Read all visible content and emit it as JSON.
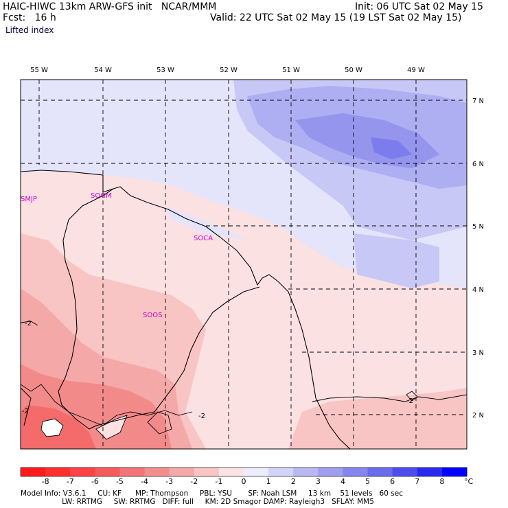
{
  "header": {
    "title": "HAIC-HIWC 13km ARW-GFS init   NCAR/MMM",
    "fcst": "Fcst:   16 h",
    "field": "Lifted index",
    "init": "Init: 06 UTC Sat 02 May 15",
    "valid": "Valid: 22 UTC Sat 02 May 15 (19 LST Sat 02 May 15)"
  },
  "map": {
    "lon_labels": [
      "55 W",
      "54 W",
      "53 W",
      "52 W",
      "51 W",
      "50 W",
      "49 W"
    ],
    "lat_labels": [
      "7 N",
      "6 N",
      "5 N",
      "4 N",
      "3 N",
      "2 N"
    ],
    "stations": [
      "SMJP",
      "SOGM",
      "SOCA",
      "SOOS"
    ],
    "contour_labels": [
      "-2",
      "-2",
      "-2",
      "-2"
    ],
    "colors": {
      "neg": [
        "#ff2020",
        "#ff4545",
        "#f56b6b",
        "#f38a8a",
        "#f5a8a8",
        "#f8c4c4",
        "#fbe1e1"
      ],
      "pos": [
        "#e4e4fb",
        "#c8c8f6",
        "#aeaef2",
        "#9595ee",
        "#7c7ced",
        "#5a5aee",
        "#2a2aef",
        "#0000ff"
      ],
      "coast": "#000000",
      "station_text": "#cc00cc"
    }
  },
  "colorbar": {
    "labels": [
      "-8",
      "-7",
      "-6",
      "-5",
      "-4",
      "-3",
      "-2",
      "-1",
      "0",
      "1",
      "2",
      "3",
      "4",
      "5",
      "6",
      "7",
      "8"
    ],
    "unit": "°C",
    "colors": [
      "#ff1a1a",
      "#ff2e2e",
      "#fd4343",
      "#f65a5a",
      "#f37575",
      "#f38e8e",
      "#f5a8a8",
      "#f8c4c4",
      "#fbe3e3",
      "#ececfb",
      "#d3d3f8",
      "#b8b8f3",
      "#9f9fef",
      "#8585ee",
      "#6b6bed",
      "#4d4dee",
      "#2a2aef",
      "#0000ff"
    ]
  },
  "footer": {
    "line1": "Model Info: V3.6.1     CU: KF      MP: Thompson     PBL: YSU       SF: Noah LSM     13 km    51 levels   60 sec",
    "line2": "                  LW: RRTMG     SW: RRTMG   DIFF: full     KM: 2D Smagor DAMP: Rayleigh3   SFLAY: MM5"
  }
}
